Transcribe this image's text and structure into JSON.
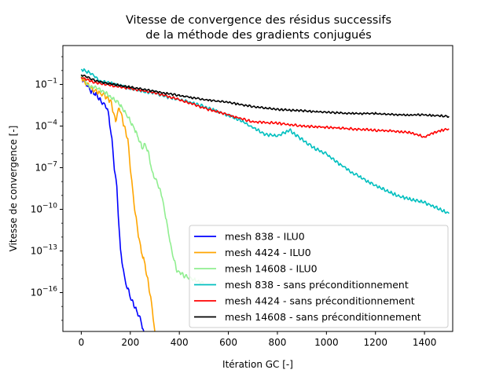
{
  "chart_data": {
    "type": "line",
    "title": "Vitesse de convergence des résidus successifs",
    "subtitle": "de la méthode des gradients conjugués",
    "xlabel": "Itération GC [-]",
    "ylabel": "Vitesse de convergence [-]",
    "xlim": [
      -75,
      1515
    ],
    "ylim_exponent": [
      -18.8,
      1.8
    ],
    "yscale": "log",
    "x_ticks": [
      0,
      200,
      400,
      600,
      800,
      1000,
      1200,
      1400
    ],
    "y_ticks": [
      {
        "exp": -1,
        "base": "10",
        "sup": "−1"
      },
      {
        "exp": -4,
        "base": "10",
        "sup": "−4"
      },
      {
        "exp": -7,
        "base": "10",
        "sup": "−7"
      },
      {
        "exp": -10,
        "base": "10",
        "sup": "−10"
      },
      {
        "exp": -13,
        "base": "10",
        "sup": "−13"
      },
      {
        "exp": -16,
        "base": "10",
        "sup": "−16"
      }
    ],
    "legend_position": "lower-right",
    "series": [
      {
        "name": "mesh 838 - ILU0",
        "color": "#0000ff",
        "noise": 0.18,
        "seed": 11,
        "points": [
          [
            0,
            -0.5
          ],
          [
            15,
            -0.8
          ],
          [
            40,
            -1.5
          ],
          [
            60,
            -1.7
          ],
          [
            80,
            -2.2
          ],
          [
            100,
            -2.5
          ],
          [
            110,
            -3
          ],
          [
            125,
            -5
          ],
          [
            135,
            -7
          ],
          [
            145,
            -8.5
          ],
          [
            160,
            -13
          ],
          [
            175,
            -14.8
          ],
          [
            185,
            -15.5
          ],
          [
            200,
            -16.3
          ],
          [
            220,
            -17.1
          ],
          [
            240,
            -17.9
          ],
          [
            255,
            -18.8
          ]
        ]
      },
      {
        "name": "mesh 4424 - ILU0",
        "color": "#ffa500",
        "noise": 0.18,
        "seed": 23,
        "points": [
          [
            0,
            -0.5
          ],
          [
            20,
            -0.9
          ],
          [
            50,
            -1.4
          ],
          [
            90,
            -1.7
          ],
          [
            120,
            -2.2
          ],
          [
            140,
            -3.6
          ],
          [
            155,
            -2.6
          ],
          [
            175,
            -4
          ],
          [
            190,
            -5
          ],
          [
            200,
            -7
          ],
          [
            215,
            -9.5
          ],
          [
            230,
            -11.5
          ],
          [
            245,
            -13
          ],
          [
            260,
            -14
          ],
          [
            280,
            -16
          ],
          [
            290,
            -17.2
          ],
          [
            300,
            -18.8
          ]
        ]
      },
      {
        "name": "mesh 14608 - ILU0",
        "color": "#90ee90",
        "noise": 0.15,
        "seed": 37,
        "points": [
          [
            0,
            -0.3
          ],
          [
            30,
            -1.1
          ],
          [
            60,
            -1.2
          ],
          [
            100,
            -1.6
          ],
          [
            150,
            -2.3
          ],
          [
            190,
            -3.3
          ],
          [
            220,
            -4.3
          ],
          [
            250,
            -5.6
          ],
          [
            260,
            -5.3
          ],
          [
            275,
            -6
          ],
          [
            290,
            -7.4
          ],
          [
            310,
            -8.1
          ],
          [
            330,
            -9.1
          ],
          [
            350,
            -11.1
          ],
          [
            370,
            -13.1
          ],
          [
            390,
            -14.4
          ],
          [
            420,
            -14.8
          ],
          [
            460,
            -15.1
          ],
          [
            500,
            -15.3
          ]
        ]
      },
      {
        "name": "mesh 838 - sans préconditionnement",
        "color": "#00bfbf",
        "noise": 0.12,
        "seed": 53,
        "points": [
          [
            0,
            0.1
          ],
          [
            20,
            -0.05
          ],
          [
            50,
            -0.3
          ],
          [
            80,
            -0.8
          ],
          [
            120,
            -0.9
          ],
          [
            160,
            -1.1
          ],
          [
            200,
            -1.3
          ],
          [
            250,
            -1.5
          ],
          [
            300,
            -1.6
          ],
          [
            350,
            -1.9
          ],
          [
            450,
            -2.3
          ],
          [
            550,
            -2.9
          ],
          [
            650,
            -3.6
          ],
          [
            750,
            -4.6
          ],
          [
            800,
            -4.7
          ],
          [
            850,
            -4.3
          ],
          [
            950,
            -5.6
          ],
          [
            1000,
            -6.0
          ],
          [
            1050,
            -6.7
          ],
          [
            1100,
            -7.3
          ],
          [
            1200,
            -8.3
          ],
          [
            1300,
            -9.1
          ],
          [
            1400,
            -9.5
          ],
          [
            1450,
            -9.9
          ],
          [
            1500,
            -10.3
          ]
        ]
      },
      {
        "name": "mesh 4424 - sans préconditionnement",
        "color": "#ff0000",
        "noise": 0.09,
        "seed": 71,
        "points": [
          [
            0,
            -0.5
          ],
          [
            30,
            -0.7
          ],
          [
            50,
            -0.85
          ],
          [
            100,
            -1.0
          ],
          [
            200,
            -1.3
          ],
          [
            300,
            -1.6
          ],
          [
            400,
            -2.1
          ],
          [
            500,
            -2.7
          ],
          [
            600,
            -3.2
          ],
          [
            700,
            -3.7
          ],
          [
            800,
            -3.8
          ],
          [
            900,
            -4.0
          ],
          [
            1000,
            -4.1
          ],
          [
            1100,
            -4.2
          ],
          [
            1200,
            -4.3
          ],
          [
            1300,
            -4.4
          ],
          [
            1350,
            -4.5
          ],
          [
            1400,
            -4.8
          ],
          [
            1450,
            -4.4
          ],
          [
            1500,
            -4.2
          ]
        ]
      },
      {
        "name": "mesh 14608 - sans préconditionnement",
        "color": "#000000",
        "noise": 0.07,
        "seed": 97,
        "points": [
          [
            0,
            -0.3
          ],
          [
            30,
            -0.5
          ],
          [
            60,
            -0.75
          ],
          [
            100,
            -0.9
          ],
          [
            200,
            -1.2
          ],
          [
            300,
            -1.5
          ],
          [
            400,
            -1.8
          ],
          [
            500,
            -2.1
          ],
          [
            600,
            -2.3
          ],
          [
            700,
            -2.6
          ],
          [
            800,
            -2.8
          ],
          [
            900,
            -2.9
          ],
          [
            1000,
            -3.0
          ],
          [
            1100,
            -3.1
          ],
          [
            1200,
            -3.1
          ],
          [
            1300,
            -3.2
          ],
          [
            1400,
            -3.2
          ],
          [
            1500,
            -3.3
          ]
        ]
      }
    ]
  }
}
